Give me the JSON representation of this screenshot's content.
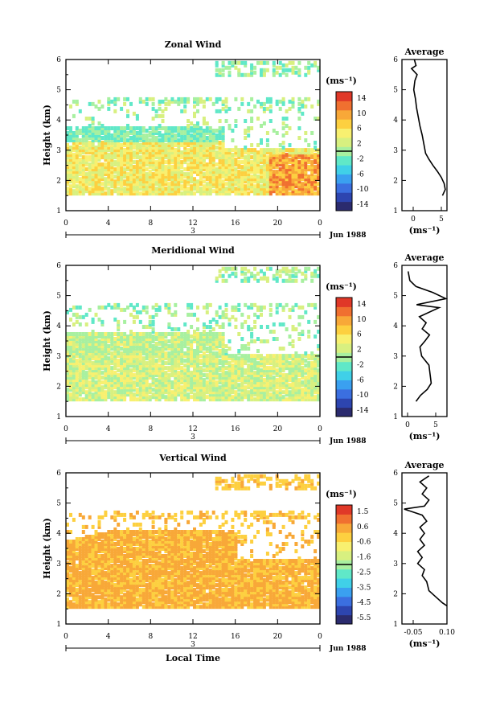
{
  "panels": [
    {
      "title": "Zonal Wind",
      "ylabel": "Height (km)",
      "yticks": [
        "1",
        "2",
        "3",
        "4",
        "5",
        "6"
      ],
      "xticks": [
        "0",
        "4",
        "8",
        "12",
        "16",
        "20",
        "0"
      ],
      "date_label": "3",
      "date_suffix": "Jun 1988",
      "colorbar_unit": "(ms⁻¹)",
      "colorbar_ticks": [
        "14",
        "10",
        "6",
        "2",
        "-2",
        "-6",
        "-10",
        "-14"
      ],
      "profile_title": "Average",
      "profile_xticks": [
        "0",
        "5"
      ],
      "profile_xlabel": "(ms⁻¹)"
    },
    {
      "title": "Meridional Wind",
      "ylabel": "Height (km)",
      "yticks": [
        "1",
        "2",
        "3",
        "4",
        "5",
        "6"
      ],
      "xticks": [
        "0",
        "4",
        "8",
        "12",
        "16",
        "20",
        "0"
      ],
      "date_label": "3",
      "date_suffix": "Jun 1988",
      "colorbar_unit": "(ms⁻¹)",
      "colorbar_ticks": [
        "14",
        "10",
        "6",
        "2",
        "-2",
        "-6",
        "-10",
        "-14"
      ],
      "profile_title": "Average",
      "profile_xticks": [
        "0",
        "5"
      ],
      "profile_xlabel": "(ms⁻¹)"
    },
    {
      "title": "Vertical Wind",
      "ylabel": "Height (km)",
      "yticks": [
        "1",
        "2",
        "3",
        "4",
        "5",
        "6"
      ],
      "xticks": [
        "0",
        "4",
        "8",
        "12",
        "16",
        "20",
        "0"
      ],
      "date_label": "3",
      "date_suffix": "Jun 1988",
      "colorbar_unit": "(ms⁻¹)",
      "colorbar_ticks": [
        "1.5",
        "0.6",
        "-0.6",
        "-1.6",
        "-2.5",
        "-3.5",
        "-4.5",
        "-5.5"
      ],
      "profile_title": "Average",
      "profile_xticks": [
        "-0.05",
        "0.10"
      ],
      "profile_xlabel": "(ms⁻¹)"
    }
  ],
  "xlabel": "Local Time",
  "colormap": [
    "#2b2b6e",
    "#2d45b0",
    "#3b6fe0",
    "#3aa0f0",
    "#40d0e8",
    "#60e8c8",
    "#a8f0a0",
    "#d8f080",
    "#f8f070",
    "#fdd040",
    "#f8a838",
    "#f07030",
    "#e03828"
  ],
  "chart_data": [
    {
      "type": "heatmap",
      "title": "Zonal Wind",
      "xlabel": "Local Time",
      "ylabel": "Height (km)",
      "xlim": [
        0,
        24
      ],
      "ylim": [
        1,
        6
      ],
      "x_ticks": [
        0,
        4,
        8,
        12,
        16,
        20,
        24
      ],
      "colorbar": {
        "unit": "ms^-1",
        "range": [
          -14,
          14
        ],
        "ticks": [
          14,
          10,
          6,
          2,
          -2,
          -6,
          -10,
          -14
        ]
      },
      "data_coverage_km": [
        1.5,
        5.8
      ],
      "profile": {
        "title": "Average",
        "xlim": [
          -2,
          6
        ],
        "ylim": [
          1,
          6
        ],
        "x_ticks": [
          0,
          5
        ],
        "points": [
          [
            5.2,
            1.5
          ],
          [
            5.7,
            1.7
          ],
          [
            5.5,
            1.9
          ],
          [
            5.0,
            2.1
          ],
          [
            4.3,
            2.3
          ],
          [
            3.5,
            2.5
          ],
          [
            2.8,
            2.7
          ],
          [
            2.2,
            2.9
          ],
          [
            1.9,
            3.2
          ],
          [
            1.6,
            3.5
          ],
          [
            1.2,
            3.8
          ],
          [
            0.9,
            4.1
          ],
          [
            0.6,
            4.4
          ],
          [
            0.4,
            4.7
          ],
          [
            0.1,
            5.0
          ],
          [
            0.3,
            5.3
          ],
          [
            0.7,
            5.5
          ],
          [
            -0.3,
            5.7
          ],
          [
            0.5,
            5.8
          ],
          [
            0.2,
            6.0
          ]
        ]
      }
    },
    {
      "type": "heatmap",
      "title": "Meridional Wind",
      "xlabel": "Local Time",
      "ylabel": "Height (km)",
      "xlim": [
        0,
        24
      ],
      "ylim": [
        1,
        6
      ],
      "x_ticks": [
        0,
        4,
        8,
        12,
        16,
        20,
        24
      ],
      "colorbar": {
        "unit": "ms^-1",
        "range": [
          -14,
          14
        ],
        "ticks": [
          14,
          10,
          6,
          2,
          -2,
          -6,
          -10,
          -14
        ]
      },
      "data_coverage_km": [
        1.5,
        5.8
      ],
      "profile": {
        "title": "Average",
        "xlim": [
          -1,
          7
        ],
        "ylim": [
          1,
          6
        ],
        "x_ticks": [
          0,
          5
        ],
        "points": [
          [
            1.5,
            1.5
          ],
          [
            2.3,
            1.7
          ],
          [
            3.5,
            1.9
          ],
          [
            4.2,
            2.1
          ],
          [
            4.0,
            2.4
          ],
          [
            3.8,
            2.7
          ],
          [
            2.5,
            3.0
          ],
          [
            2.2,
            3.3
          ],
          [
            3.1,
            3.5
          ],
          [
            3.9,
            3.7
          ],
          [
            2.6,
            3.9
          ],
          [
            3.3,
            4.1
          ],
          [
            2.1,
            4.3
          ],
          [
            5.6,
            4.6
          ],
          [
            1.6,
            4.7
          ],
          [
            6.8,
            4.9
          ],
          [
            4.5,
            5.1
          ],
          [
            1.5,
            5.3
          ],
          [
            0.4,
            5.5
          ],
          [
            0.1,
            5.8
          ]
        ]
      }
    },
    {
      "type": "heatmap",
      "title": "Vertical Wind",
      "xlabel": "Local Time",
      "ylabel": "Height (km)",
      "xlim": [
        0,
        24
      ],
      "ylim": [
        1,
        6
      ],
      "x_ticks": [
        0,
        4,
        8,
        12,
        16,
        20,
        24
      ],
      "colorbar": {
        "unit": "ms^-1",
        "range": [
          -5.5,
          1.5
        ],
        "ticks": [
          1.5,
          0.6,
          -0.6,
          -1.6,
          -2.5,
          -3.5,
          -4.5,
          -5.5
        ]
      },
      "data_coverage_km": [
        1.5,
        5.8
      ],
      "profile": {
        "title": "Average",
        "xlim": [
          -0.1,
          0.1
        ],
        "ylim": [
          1,
          6
        ],
        "x_ticks": [
          -0.05,
          0.1
        ],
        "points": [
          [
            0.1,
            1.6
          ],
          [
            0.08,
            1.7
          ],
          [
            0.05,
            1.9
          ],
          [
            0.02,
            2.1
          ],
          [
            0.01,
            2.4
          ],
          [
            -0.01,
            2.6
          ],
          [
            0.0,
            2.8
          ],
          [
            -0.03,
            3.0
          ],
          [
            -0.01,
            3.2
          ],
          [
            -0.03,
            3.4
          ],
          [
            0.0,
            3.6
          ],
          [
            -0.02,
            3.8
          ],
          [
            0.0,
            4.0
          ],
          [
            -0.02,
            4.2
          ],
          [
            0.01,
            4.4
          ],
          [
            -0.01,
            4.6
          ],
          [
            -0.09,
            4.8
          ],
          [
            0.0,
            4.9
          ],
          [
            0.02,
            5.1
          ],
          [
            -0.01,
            5.3
          ],
          [
            0.01,
            5.5
          ],
          [
            -0.02,
            5.7
          ],
          [
            0.02,
            5.9
          ]
        ]
      }
    }
  ]
}
